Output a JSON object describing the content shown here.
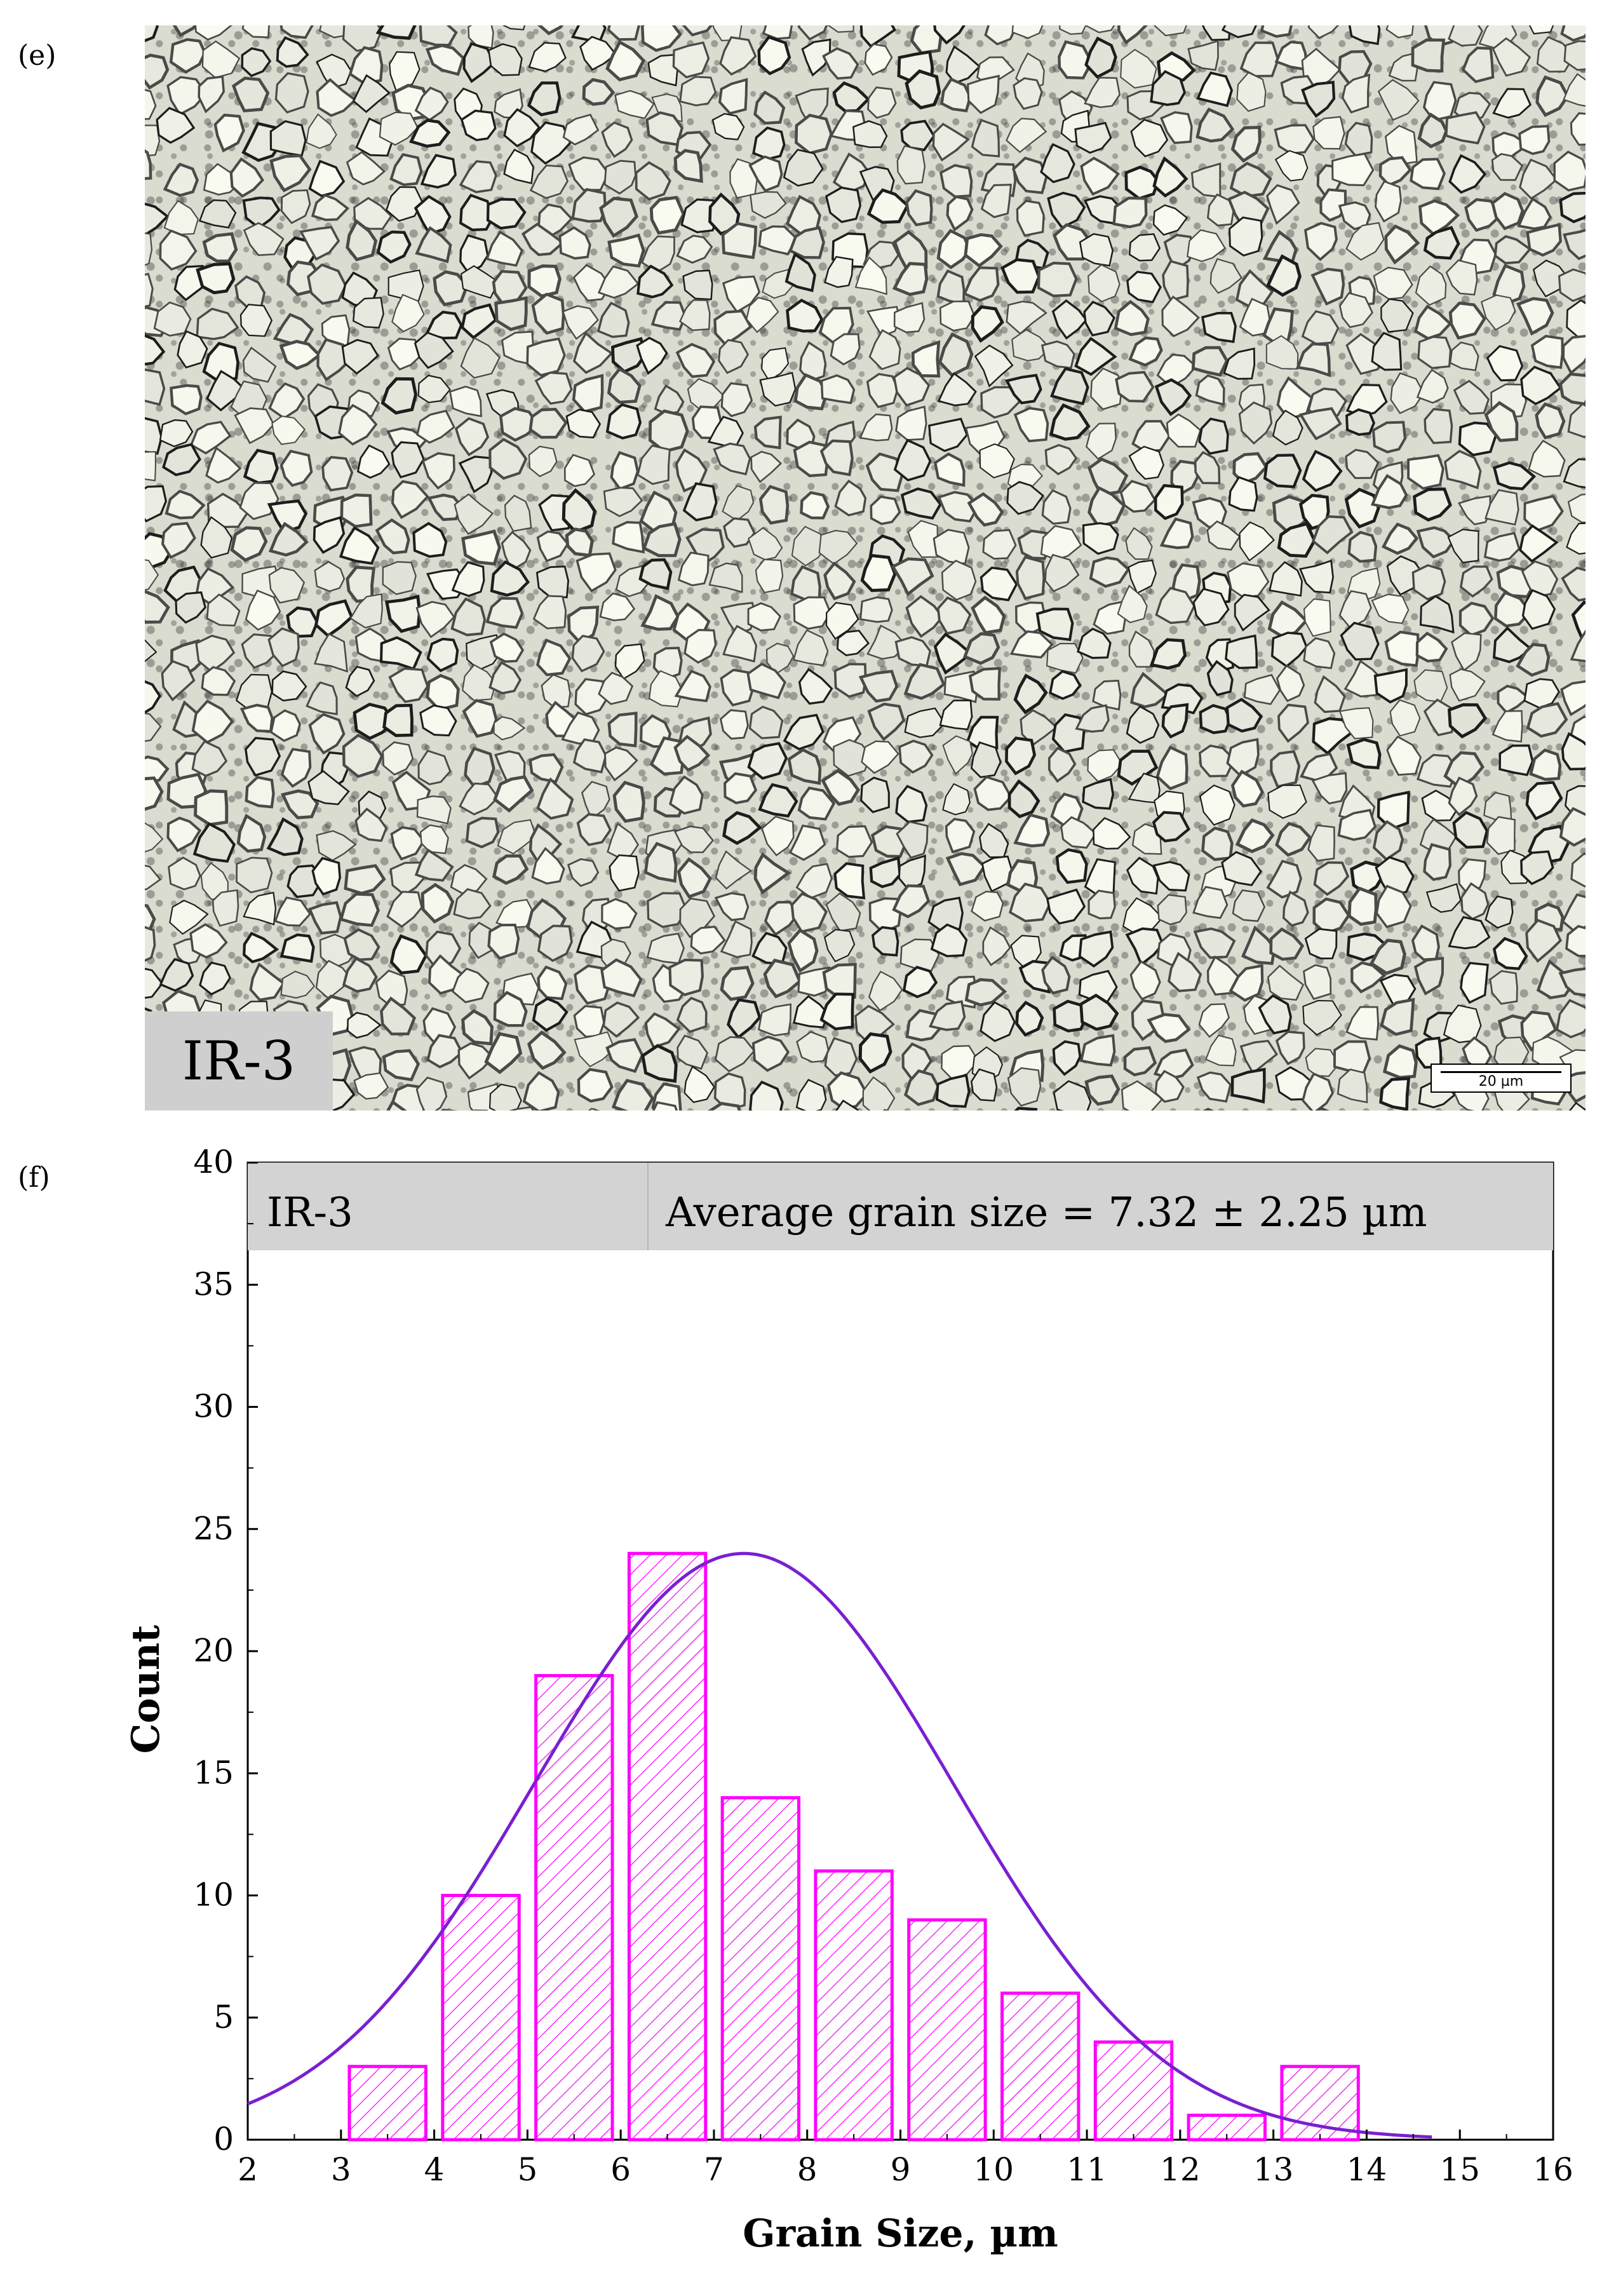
{
  "panels": {
    "e_label": "(e)",
    "f_label": "(f)"
  },
  "micrograph": {
    "sample_tag": "IR-3",
    "scale_bar": "20 µm"
  },
  "colors": {
    "bars": "#ff00ff",
    "curve": "#7a1fd1",
    "header_box": "#d3d3d3"
  },
  "chart_data": {
    "type": "bar",
    "header_left": "IR-3",
    "header_right": "Average grain size = 7.32 ± 2.25 µm",
    "xlabel": "Grain Size, µm",
    "ylabel": "Count",
    "xlim": [
      2,
      16
    ],
    "ylim": [
      0,
      40
    ],
    "xticks": [
      2,
      3,
      4,
      5,
      6,
      7,
      8,
      9,
      10,
      11,
      12,
      13,
      14,
      15,
      16
    ],
    "yticks": [
      0,
      5,
      10,
      15,
      20,
      25,
      30,
      35,
      40
    ],
    "bin_width": 1,
    "bins": [
      {
        "x": 3.5,
        "count": 3
      },
      {
        "x": 4.5,
        "count": 10
      },
      {
        "x": 5.5,
        "count": 19
      },
      {
        "x": 6.5,
        "count": 24
      },
      {
        "x": 7.5,
        "count": 14
      },
      {
        "x": 8.5,
        "count": 11
      },
      {
        "x": 9.5,
        "count": 9
      },
      {
        "x": 10.5,
        "count": 6
      },
      {
        "x": 11.5,
        "count": 4
      },
      {
        "x": 12.5,
        "count": 1
      },
      {
        "x": 13.5,
        "count": 3
      }
    ],
    "fit_curve": {
      "type": "normal",
      "mean": 7.32,
      "sd": 2.25,
      "peak": 24,
      "x_range": [
        2,
        14.7
      ]
    },
    "grid": false,
    "legend": "none"
  }
}
